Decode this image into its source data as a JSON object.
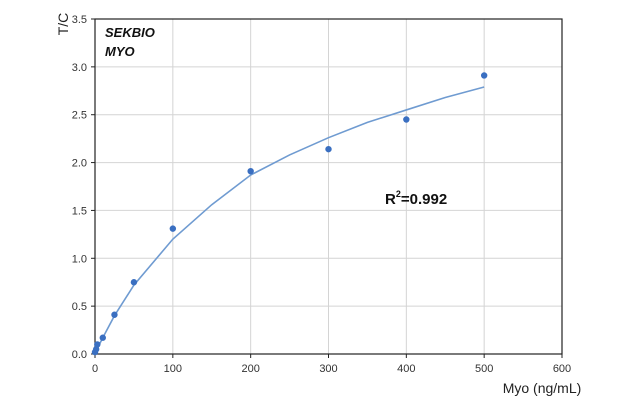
{
  "chart_data": {
    "type": "scatter",
    "title": "",
    "xlabel": "Myo (ng/mL)",
    "ylabel": "T/C",
    "xlim": [
      0,
      600
    ],
    "ylim": [
      0,
      3.5
    ],
    "x_ticks": [
      "0",
      "100",
      "200",
      "300",
      "400",
      "500",
      "600"
    ],
    "y_ticks": [
      "0.0",
      "0.5",
      "1.0",
      "1.5",
      "2.0",
      "2.5",
      "3.0",
      "3.5"
    ],
    "grid": true,
    "annotations": {
      "brand": "SEKBIO",
      "analyte": "MYO",
      "r2_label": "R",
      "r2_sup": "2",
      "r2_value": "=0.992"
    },
    "series": [
      {
        "x": [
          0,
          1.5,
          3,
          10,
          25,
          50,
          100,
          200,
          300,
          400,
          500
        ],
        "y": [
          0.02,
          0.05,
          0.1,
          0.17,
          0.41,
          0.75,
          1.31,
          1.91,
          2.14,
          2.45,
          2.91
        ]
      }
    ],
    "fit_curve": {
      "x": [
        0,
        5,
        10,
        25,
        50,
        100,
        150,
        200,
        250,
        300,
        350,
        400,
        450,
        500
      ],
      "y": [
        0.0,
        0.09,
        0.17,
        0.4,
        0.72,
        1.2,
        1.56,
        1.87,
        2.08,
        2.26,
        2.42,
        2.55,
        2.68,
        2.79
      ]
    },
    "colors": {
      "points": "#3a6fc1",
      "curve": "#6f9bd1",
      "grid": "#d4d4d4",
      "frame": "#222222"
    }
  }
}
